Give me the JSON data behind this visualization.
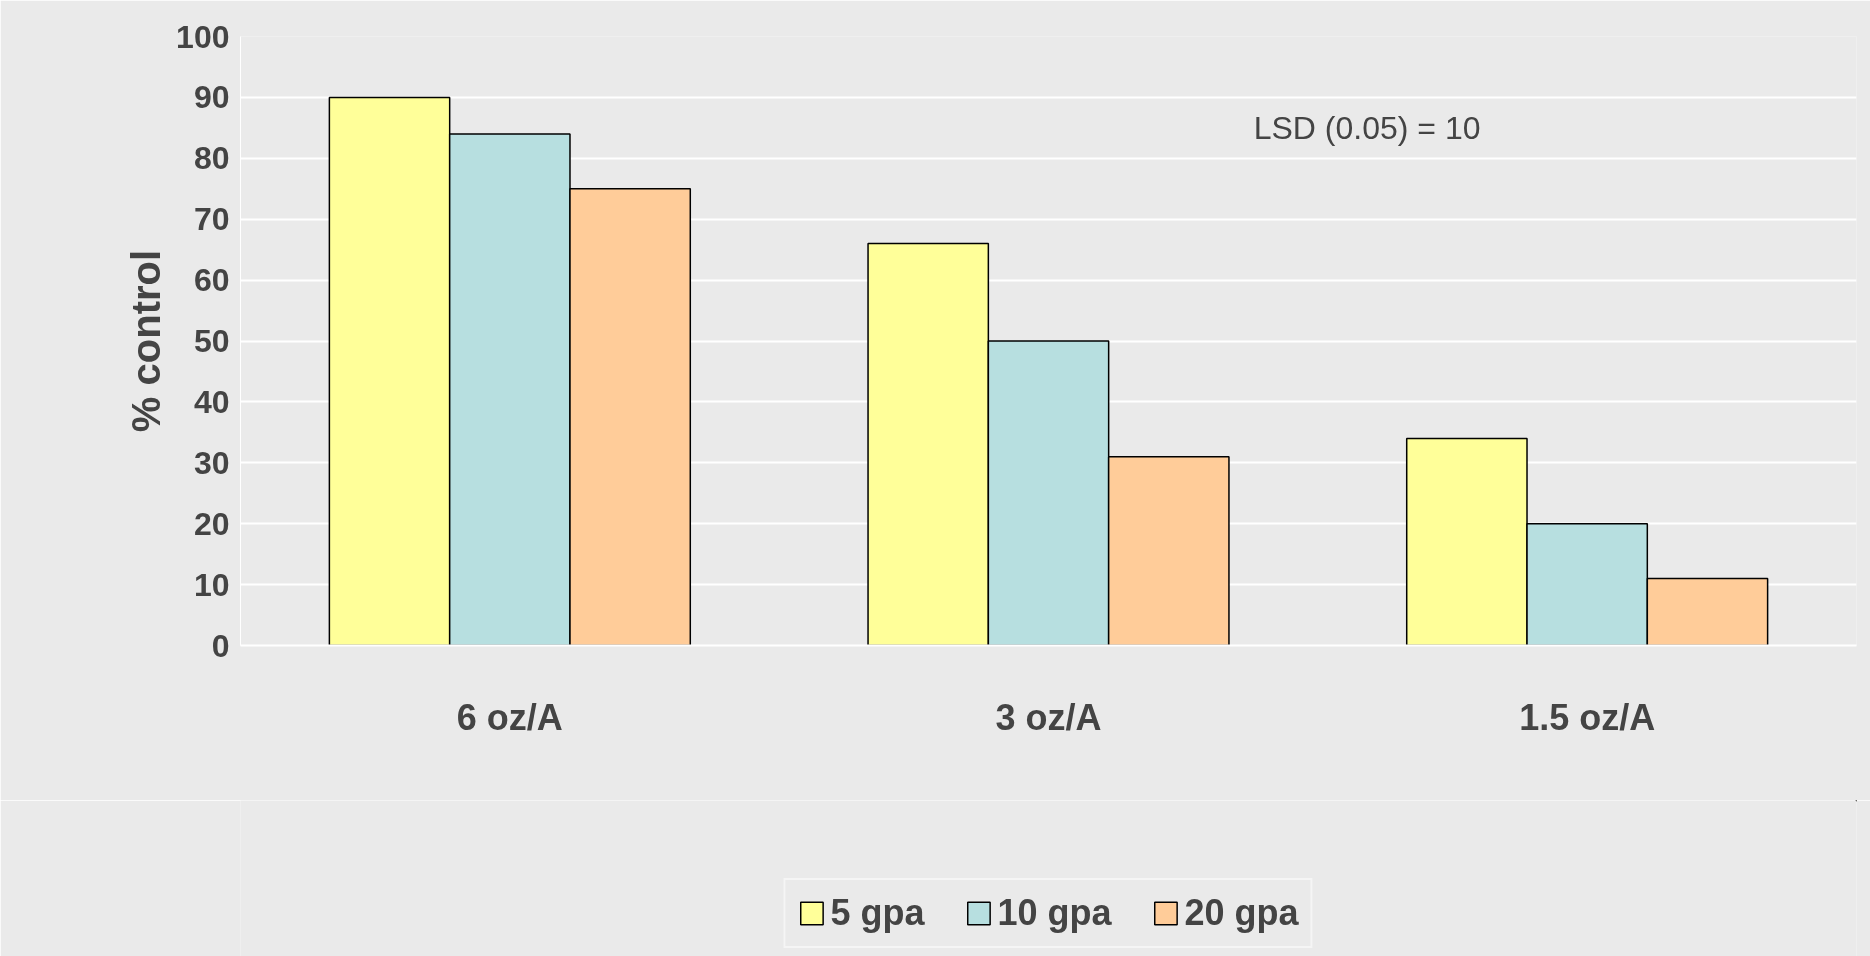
{
  "chart_data": {
    "type": "bar",
    "ylabel": "% control",
    "categories": [
      "6 oz/A",
      "3 oz/A",
      "1.5 oz/A"
    ],
    "series": [
      {
        "name": "5 gpa",
        "color": "#ffff99",
        "values": [
          90,
          66,
          34
        ]
      },
      {
        "name": "10 gpa",
        "color": "#b7dfe0",
        "values": [
          84,
          50,
          20
        ]
      },
      {
        "name": "20 gpa",
        "color": "#ffcc99",
        "values": [
          75,
          31,
          11
        ]
      }
    ],
    "ylim": [
      0,
      100
    ],
    "yticks": [
      0,
      10,
      20,
      30,
      40,
      50,
      60,
      70,
      80,
      90,
      100
    ],
    "grid": "y",
    "legend": "bottom",
    "annotations": [
      "LSD (0.05) = 10"
    ]
  }
}
